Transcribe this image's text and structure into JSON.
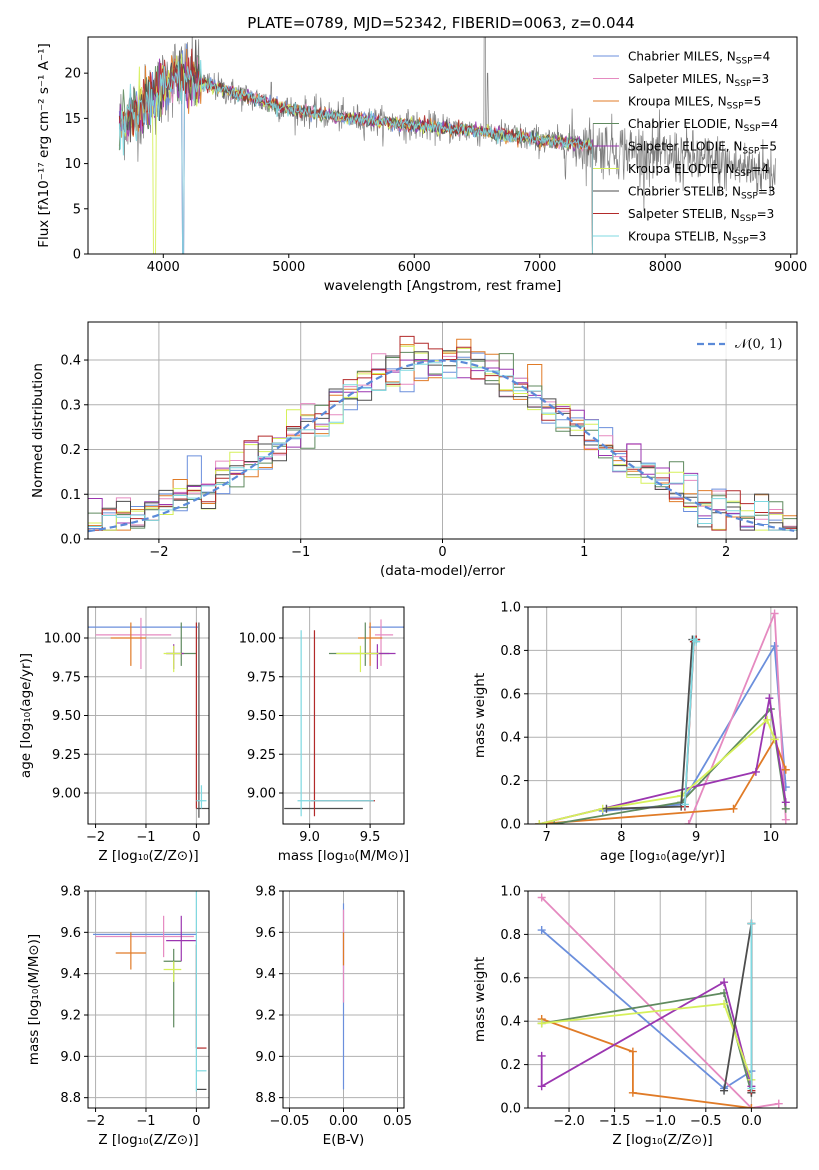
{
  "colors": [
    "#6b8fdc",
    "#e58ac0",
    "#e07b27",
    "#5f8a5f",
    "#9b36b0",
    "#d6f05a",
    "#4d4d4d",
    "#b22a2a",
    "#7fd8e0"
  ],
  "chart_data": [
    {
      "id": "spectrum",
      "type": "line",
      "title": "PLATE=0789, MJD=52342, FIBERID=0063, z=0.044",
      "xlabel": "wavelength [Angstrom, rest frame]",
      "ylabel": "Flux [fλ10⁻¹⁷ erg cm⁻² s⁻¹ A⁻¹]",
      "xlim": [
        3400,
        9050
      ],
      "ylim": [
        0,
        24
      ],
      "xticks": [
        "4000",
        "5000",
        "6000",
        "7000",
        "8000",
        "9000"
      ],
      "yticks": [
        "0",
        "5",
        "10",
        "15",
        "20"
      ],
      "grid": false,
      "legend_position": "top-right",
      "data_range": [
        3650,
        7420
      ],
      "continuum": [
        [
          3650,
          14.5
        ],
        [
          3900,
          17
        ],
        [
          4100,
          20
        ],
        [
          4400,
          18.5
        ],
        [
          5000,
          16
        ],
        [
          5500,
          15
        ],
        [
          6000,
          14.2
        ],
        [
          6500,
          13.6
        ],
        [
          7000,
          12.6
        ],
        [
          7420,
          12.0
        ]
      ],
      "observed_range": [
        3650,
        8880
      ],
      "series": [
        {
          "name": "Chabrier MILES",
          "n_ssp": "N",
          "sub": "SSP",
          "suffix": "=4"
        },
        {
          "name": "Salpeter MILES",
          "n_ssp": "N",
          "sub": "SSP",
          "suffix": "=3"
        },
        {
          "name": "Kroupa MILES",
          "n_ssp": "N",
          "sub": "SSP",
          "suffix": "=5"
        },
        {
          "name": "Chabrier ELODIE",
          "n_ssp": "N",
          "sub": "SSP",
          "suffix": "=4"
        },
        {
          "name": "Salpeter ELODIE",
          "n_ssp": "N",
          "sub": "SSP",
          "suffix": "=5"
        },
        {
          "name": "Kroupa ELODIE",
          "n_ssp": "N",
          "sub": "SSP",
          "suffix": "=4"
        },
        {
          "name": "Chabrier STELIB",
          "n_ssp": "N",
          "sub": "SSP",
          "suffix": "=3"
        },
        {
          "name": "Salpeter STELIB",
          "n_ssp": "N",
          "sub": "SSP",
          "suffix": "=3"
        },
        {
          "name": "Kroupa STELIB",
          "n_ssp": "N",
          "sub": "SSP",
          "suffix": "=3"
        }
      ]
    },
    {
      "id": "residuals",
      "type": "line",
      "xlabel": "(data-model)/error",
      "ylabel": "Normed distribution",
      "xlim": [
        -2.5,
        2.5
      ],
      "ylim": [
        0,
        0.485
      ],
      "xticks": [
        -2,
        -1,
        0,
        1,
        2
      ],
      "xtick_labels": [
        "−2",
        "−1",
        "0",
        "1",
        "2"
      ],
      "yticks": [
        0.0,
        0.1,
        0.2,
        0.3,
        0.4
      ],
      "ytick_labels": [
        "0.0",
        "0.1",
        "0.2",
        "0.3",
        "0.4"
      ],
      "grid": true,
      "legend_position": "top-right",
      "legend": "𝒩(0, 1)",
      "bin_width": 0.1,
      "gaussian": {
        "mu": 0,
        "sigma": 1
      }
    },
    {
      "id": "age_vs_Z",
      "type": "scatter",
      "xlabel": "Z [log₁₀(Z/Z⊙)]",
      "ylabel": "age  [log₁₀(age/yr)]",
      "xlim": [
        -2.15,
        0.25
      ],
      "ylim": [
        8.8,
        10.2
      ],
      "xticks": [
        -2,
        -1,
        0
      ],
      "xtick_labels": [
        "−2",
        "−1",
        "0"
      ],
      "yticks": [
        9.0,
        9.25,
        9.5,
        9.75,
        10.0
      ],
      "ytick_labels": [
        "9.00",
        "9.25",
        "9.50",
        "9.75",
        "10.00"
      ],
      "grid": true,
      "points": [
        {
          "x": -0.3,
          "y": 10.07,
          "xerr": [
            1.9,
            0.33
          ],
          "yerr": [
            0,
            0
          ]
        },
        {
          "x": -1.1,
          "y": 10.02,
          "xerr": [
            0.9,
            0.6
          ],
          "yerr": [
            0.22,
            0.11
          ]
        },
        {
          "x": -1.3,
          "y": 10.0,
          "xerr": [
            0.4,
            0.3
          ],
          "yerr": [
            0.18,
            0.1
          ]
        },
        {
          "x": -0.3,
          "y": 9.9,
          "xerr": [
            0.3,
            0.3
          ],
          "yerr": [
            0.08,
            0.2
          ]
        },
        {
          "x": -0.45,
          "y": 9.9,
          "xerr": [
            0.15,
            0.2
          ],
          "yerr": [
            0.1,
            0.06
          ]
        },
        {
          "x": -0.45,
          "y": 9.9,
          "xerr": [
            0.2,
            0.15
          ],
          "yerr": [
            0.12,
            0.05
          ]
        },
        {
          "x": 0.05,
          "y": 8.9,
          "xerr": [
            0.05,
            0.2
          ],
          "yerr": [
            0.06,
            1.2
          ]
        },
        {
          "x": 0.0,
          "y": 9.0,
          "xerr": [
            0,
            0
          ],
          "yerr": [
            0.1,
            1.1
          ]
        },
        {
          "x": 0.1,
          "y": 8.95,
          "xerr": [
            0.1,
            0.1
          ],
          "yerr": [
            0.05,
            0.1
          ]
        }
      ]
    },
    {
      "id": "age_vs_mass",
      "type": "scatter",
      "xlabel": "mass [log₁₀(M/M⊙)]",
      "ylabel": "",
      "xlim": [
        8.78,
        9.78
      ],
      "ylim": [
        8.8,
        10.2
      ],
      "xticks": [
        9.0,
        9.5
      ],
      "xtick_labels": [
        "9.0",
        "9.5"
      ],
      "yticks": [
        9.0,
        9.25,
        9.5,
        9.75,
        10.0
      ],
      "ytick_labels": [
        "9.00",
        "9.25",
        "9.50",
        "9.75",
        "10.00"
      ],
      "grid": true,
      "points": [
        {
          "x": 9.59,
          "y": 10.07,
          "xerr": [
            0.1,
            0.2
          ],
          "yerr": [
            0,
            0
          ]
        },
        {
          "x": 9.59,
          "y": 10.02,
          "xerr": [
            0.05,
            0.1
          ],
          "yerr": [
            0.2,
            0.1
          ]
        },
        {
          "x": 9.5,
          "y": 10.0,
          "xerr": [
            0.1,
            0.1
          ],
          "yerr": [
            0.18,
            0.1
          ]
        },
        {
          "x": 9.46,
          "y": 9.9,
          "xerr": [
            0.3,
            0.2
          ],
          "yerr": [
            0.08,
            0.2
          ]
        },
        {
          "x": 9.56,
          "y": 9.9,
          "xerr": [
            0.1,
            0.15
          ],
          "yerr": [
            0.1,
            0.06
          ]
        },
        {
          "x": 9.42,
          "y": 9.9,
          "xerr": [
            0.2,
            0.15
          ],
          "yerr": [
            0.12,
            0.05
          ]
        },
        {
          "x": 8.84,
          "y": 8.9,
          "xerr": [
            0.05,
            0.6
          ],
          "yerr": [
            0,
            0
          ]
        },
        {
          "x": 9.04,
          "y": 8.95,
          "xerr": [
            0.03,
            0.5
          ],
          "yerr": [
            0.1,
            1.1
          ]
        },
        {
          "x": 8.93,
          "y": 8.95,
          "xerr": [
            0.03,
            0.6
          ],
          "yerr": [
            0.1,
            1.1
          ]
        }
      ]
    },
    {
      "id": "weight_vs_age",
      "type": "line",
      "xlabel": "age  [log₁₀(age/yr)]",
      "ylabel": "mass weight",
      "xlim": [
        6.75,
        10.35
      ],
      "ylim": [
        0,
        1.0
      ],
      "xticks": [
        7,
        8,
        9,
        10
      ],
      "xtick_labels": [
        "7",
        "8",
        "9",
        "10"
      ],
      "yticks": [
        0.0,
        0.2,
        0.4,
        0.6,
        0.8,
        1.0
      ],
      "ytick_labels": [
        "0.0",
        "0.2",
        "0.4",
        "0.6",
        "0.8",
        "1.0"
      ],
      "grid": true,
      "series": [
        {
          "x": [
            7.75,
            8.8,
            10.05,
            10.2
          ],
          "y": [
            0.06,
            0.09,
            0.82,
            0.17
          ]
        },
        {
          "x": [
            8.9,
            10.05,
            10.2
          ],
          "y": [
            0.0,
            0.97,
            0.02
          ]
        },
        {
          "x": [
            6.9,
            9.5,
            10.05,
            10.2
          ],
          "y": [
            0.0,
            0.07,
            0.39,
            0.25
          ]
        },
        {
          "x": [
            7.1,
            8.8,
            10.0,
            10.2
          ],
          "y": [
            0.0,
            0.1,
            0.53,
            0.07
          ]
        },
        {
          "x": [
            6.9,
            9.8,
            9.98,
            10.2
          ],
          "y": [
            0.0,
            0.24,
            0.58,
            0.1
          ]
        },
        {
          "x": [
            6.9,
            7.75,
            8.8,
            9.95,
            10.05
          ],
          "y": [
            0.0,
            0.07,
            0.13,
            0.48,
            0.39
          ]
        },
        {
          "x": [
            7.8,
            8.8,
            8.95,
            9.0
          ],
          "y": [
            0.07,
            0.08,
            0.85,
            0.85
          ]
        },
        {
          "x": [
            8.85,
            8.97,
            9.0
          ],
          "y": [
            0.08,
            0.84,
            0.85
          ]
        },
        {
          "x": [
            8.85,
            8.97,
            9.0
          ],
          "y": [
            0.09,
            0.85,
            0.84
          ]
        }
      ]
    },
    {
      "id": "mass_vs_Z",
      "type": "scatter",
      "xlabel": "Z [log₁₀(Z/Z⊙)]",
      "ylabel": "mass [log₁₀(M/M⊙)]",
      "xlim": [
        -2.15,
        0.25
      ],
      "ylim": [
        8.75,
        9.8
      ],
      "xticks": [
        -2,
        -1,
        0
      ],
      "xtick_labels": [
        "−2",
        "−1",
        "0"
      ],
      "yticks": [
        8.8,
        9.0,
        9.2,
        9.4,
        9.6,
        9.8
      ],
      "ytick_labels": [
        "8.8",
        "9.0",
        "9.2",
        "9.4",
        "9.6",
        "9.8"
      ],
      "grid": true,
      "points": [
        {
          "x": -0.95,
          "y": 9.59,
          "xerr": [
            1.1,
            0.95
          ],
          "yerr": [
            0,
            0
          ]
        },
        {
          "x": -0.65,
          "y": 9.58,
          "xerr": [
            1.35,
            0.6
          ],
          "yerr": [
            0.1,
            0.1
          ]
        },
        {
          "x": -1.3,
          "y": 9.5,
          "xerr": [
            0.3,
            0.3
          ],
          "yerr": [
            0.08,
            0.1
          ]
        },
        {
          "x": -0.45,
          "y": 9.46,
          "xerr": [
            0.2,
            0.15
          ],
          "yerr": [
            0.32,
            0.06
          ]
        },
        {
          "x": -0.3,
          "y": 9.56,
          "xerr": [
            0.3,
            0.3
          ],
          "yerr": [
            0.1,
            0.12
          ]
        },
        {
          "x": -0.45,
          "y": 9.42,
          "xerr": [
            0.2,
            0.15
          ],
          "yerr": [
            0.06,
            0.04
          ]
        },
        {
          "x": 0.0,
          "y": 8.84,
          "xerr": [
            0,
            0.2
          ],
          "yerr": [
            0,
            0
          ]
        },
        {
          "x": 0.0,
          "y": 9.04,
          "xerr": [
            0,
            0.2
          ],
          "yerr": [
            0,
            0.5
          ]
        },
        {
          "x": 0.0,
          "y": 8.93,
          "xerr": [
            0,
            0.2
          ],
          "yerr": [
            0.1,
            0.9
          ]
        }
      ]
    },
    {
      "id": "mass_vs_EBV",
      "type": "scatter",
      "xlabel": "E(B-V)",
      "ylabel": "",
      "xlim": [
        -0.056,
        0.056
      ],
      "ylim": [
        8.75,
        9.8
      ],
      "xticks": [
        -0.05,
        0.0,
        0.05
      ],
      "xtick_labels": [
        "−0.05",
        "0.00",
        "0.05"
      ],
      "yticks": [
        8.8,
        9.0,
        9.2,
        9.4,
        9.6,
        9.8
      ],
      "ytick_labels": [
        "8.8",
        "9.0",
        "9.2",
        "9.4",
        "9.6",
        "9.8"
      ],
      "grid": true,
      "points": [
        {
          "x": 0.0,
          "y": 9.59,
          "xerr": [
            0,
            0
          ],
          "yerr": [
            0.75,
            0.15
          ]
        },
        {
          "x": 0.0,
          "y": 9.56,
          "xerr": [
            0,
            0
          ],
          "yerr": [
            0.3,
            0.15
          ]
        },
        {
          "x": 0.0,
          "y": 9.5,
          "xerr": [
            0,
            0
          ],
          "yerr": [
            0.06,
            0.1
          ]
        }
      ]
    },
    {
      "id": "weight_vs_Z",
      "type": "line",
      "xlabel": "Z [log₁₀(Z/Z⊙)]",
      "ylabel": "mass weight",
      "xlim": [
        -2.45,
        0.5
      ],
      "ylim": [
        0,
        1.0
      ],
      "xticks": [
        -2.0,
        -1.5,
        -1.0,
        -0.5,
        0.0
      ],
      "xtick_labels": [
        "−2.0",
        "−1.5",
        "−1.0",
        "−0.5",
        "0.0"
      ],
      "yticks": [
        0.0,
        0.2,
        0.4,
        0.6,
        0.8,
        1.0
      ],
      "ytick_labels": [
        "0.0",
        "0.2",
        "0.4",
        "0.6",
        "0.8",
        "1.0"
      ],
      "grid": true,
      "series": [
        {
          "x": [
            -2.3,
            -0.3,
            0.0
          ],
          "y": [
            0.82,
            0.09,
            0.17
          ]
        },
        {
          "x": [
            -2.3,
            0.0,
            0.3
          ],
          "y": [
            0.97,
            0.0,
            0.02
          ]
        },
        {
          "x": [
            -2.3,
            -1.3,
            -1.3,
            0.0
          ],
          "y": [
            0.41,
            0.26,
            0.07,
            0.0
          ]
        },
        {
          "x": [
            -2.3,
            -0.3,
            0.0
          ],
          "y": [
            0.39,
            0.53,
            0.07
          ]
        },
        {
          "x": [
            -2.3,
            -2.3,
            -0.3,
            0.0
          ],
          "y": [
            0.24,
            0.1,
            0.58,
            0.1
          ]
        },
        {
          "x": [
            -2.3,
            -0.3,
            0.0
          ],
          "y": [
            0.39,
            0.48,
            0.13
          ]
        },
        {
          "x": [
            -0.3,
            0.0,
            0.0
          ],
          "y": [
            0.08,
            0.85,
            0.07
          ]
        },
        {
          "x": [
            0.0,
            0.0
          ],
          "y": [
            0.08,
            0.85
          ]
        },
        {
          "x": [
            0.0,
            0.0
          ],
          "y": [
            0.09,
            0.85
          ]
        }
      ]
    }
  ]
}
